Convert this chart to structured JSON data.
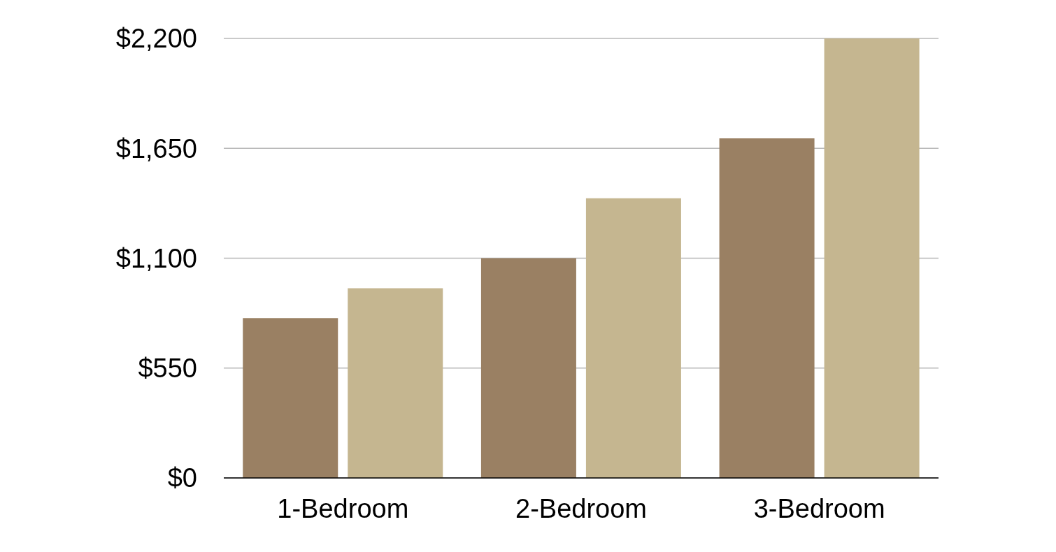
{
  "chart_data": {
    "type": "bar",
    "categories": [
      "1-Bedroom",
      "2-Bedroom",
      "3-Bedroom"
    ],
    "series": [
      {
        "color": "#9a8063",
        "values": [
          800,
          1100,
          1700
        ]
      },
      {
        "color": "#c5b690",
        "values": [
          950,
          1400,
          2200
        ]
      }
    ],
    "ylim": [
      0,
      2200
    ],
    "yticks": [
      {
        "value": 0,
        "label": "$0"
      },
      {
        "value": 550,
        "label": "$550"
      },
      {
        "value": 1100,
        "label": "$1,100"
      },
      {
        "value": 1650,
        "label": "$1,650"
      },
      {
        "value": 2200,
        "label": "$2,200"
      }
    ],
    "grid": "y",
    "legend": false
  }
}
